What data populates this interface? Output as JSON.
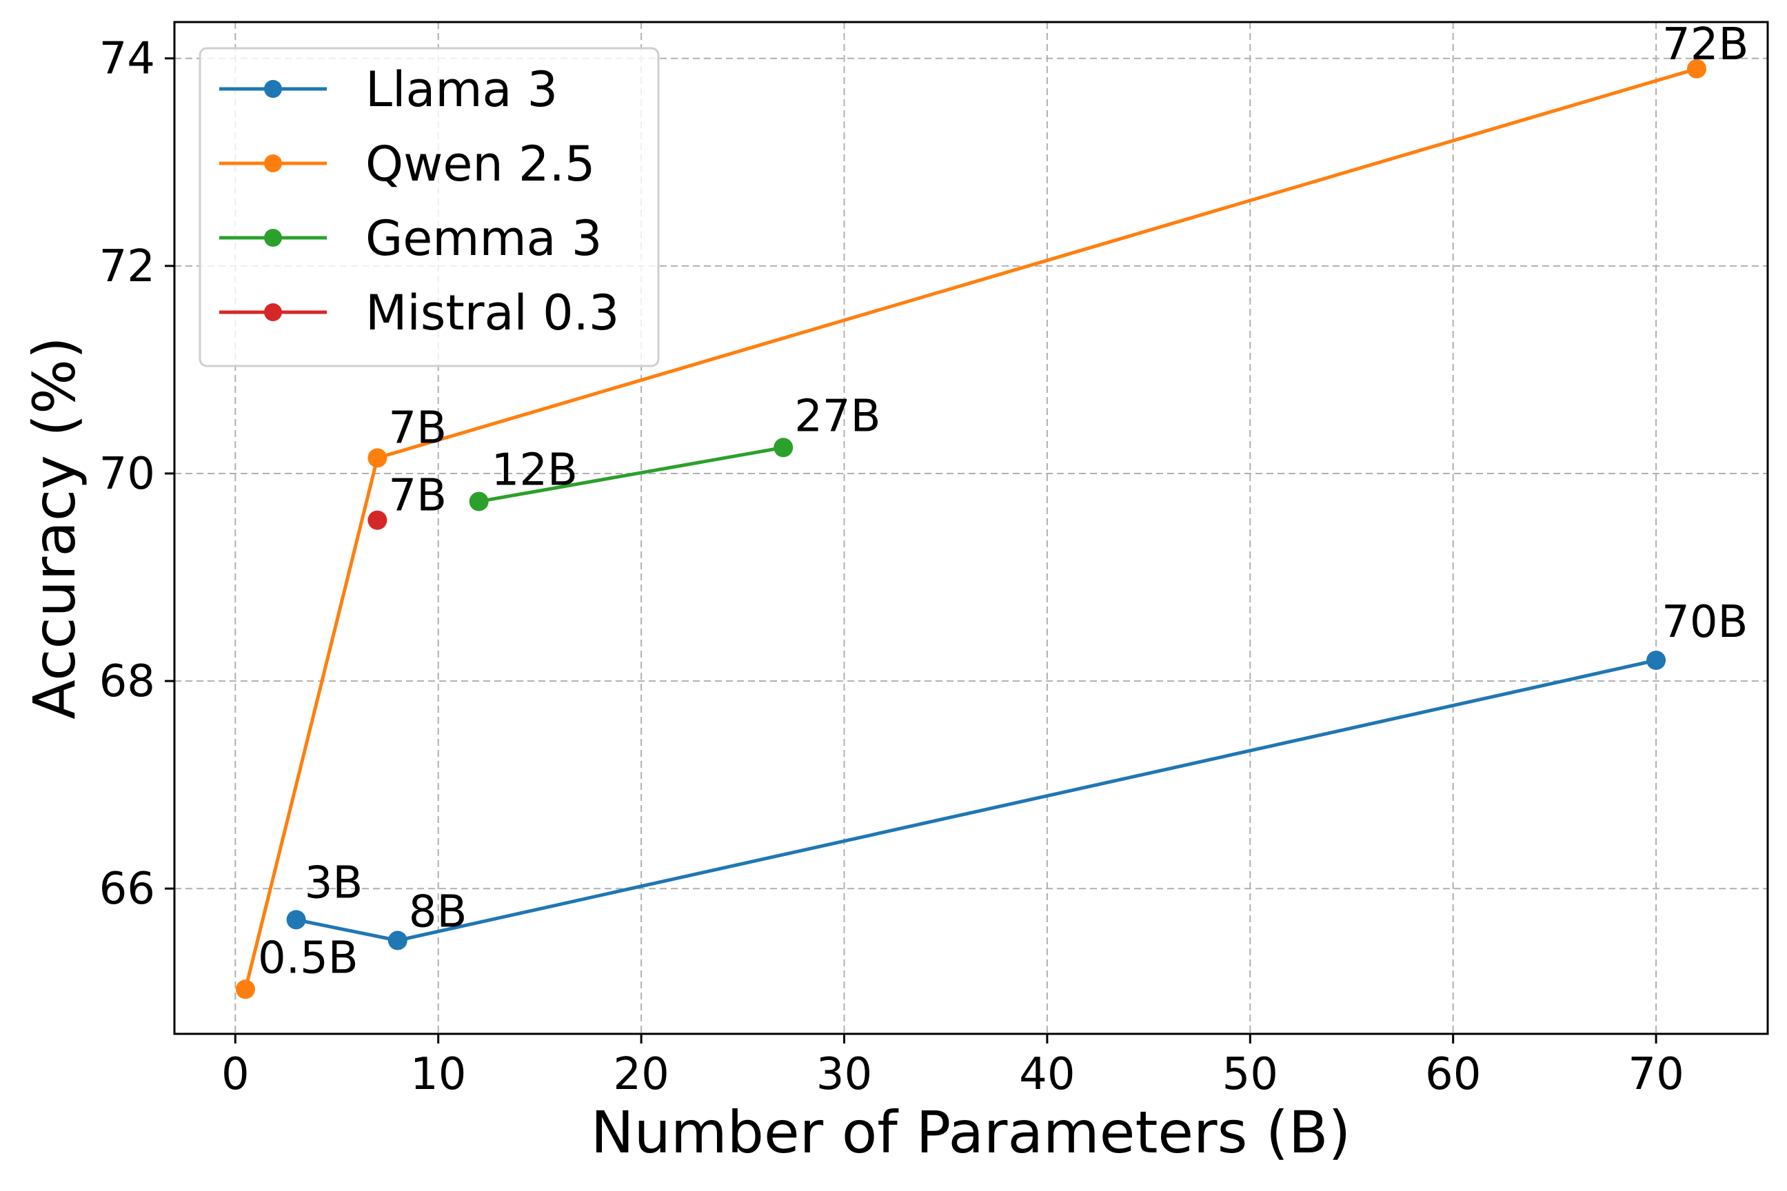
{
  "chart_data": {
    "type": "line",
    "title": "",
    "xlabel": "Number of Parameters (B)",
    "ylabel": "Accuracy (%)",
    "xlim": [
      -3,
      75.5
    ],
    "ylim": [
      64.6,
      74.35
    ],
    "xticks": [
      0,
      10,
      20,
      30,
      40,
      50,
      60,
      70
    ],
    "yticks": [
      66,
      68,
      70,
      72,
      74
    ],
    "xtick_labels": [
      "0",
      "10",
      "20",
      "30",
      "40",
      "50",
      "60",
      "70"
    ],
    "ytick_labels": [
      "66",
      "68",
      "70",
      "72",
      "74"
    ],
    "grid": true,
    "legend_position": "top-left",
    "series": [
      {
        "name": "Llama 3",
        "color": "#1f77b4",
        "x": [
          3,
          8,
          70
        ],
        "y": [
          65.7,
          65.5,
          68.2
        ],
        "labels": [
          "3B",
          "8B",
          "70B"
        ]
      },
      {
        "name": "Qwen 2.5",
        "color": "#ff7f0e",
        "x": [
          0.5,
          7,
          72
        ],
        "y": [
          65.03,
          70.15,
          73.9
        ],
        "labels": [
          "0.5B",
          "7B",
          "72B"
        ]
      },
      {
        "name": "Gemma 3",
        "color": "#2ca02c",
        "x": [
          12,
          27
        ],
        "y": [
          69.73,
          70.25
        ],
        "labels": [
          "12B",
          "27B"
        ]
      },
      {
        "name": "Mistral 0.3",
        "color": "#d62728",
        "x": [
          7
        ],
        "y": [
          69.55
        ],
        "labels": [
          "7B"
        ]
      }
    ]
  }
}
